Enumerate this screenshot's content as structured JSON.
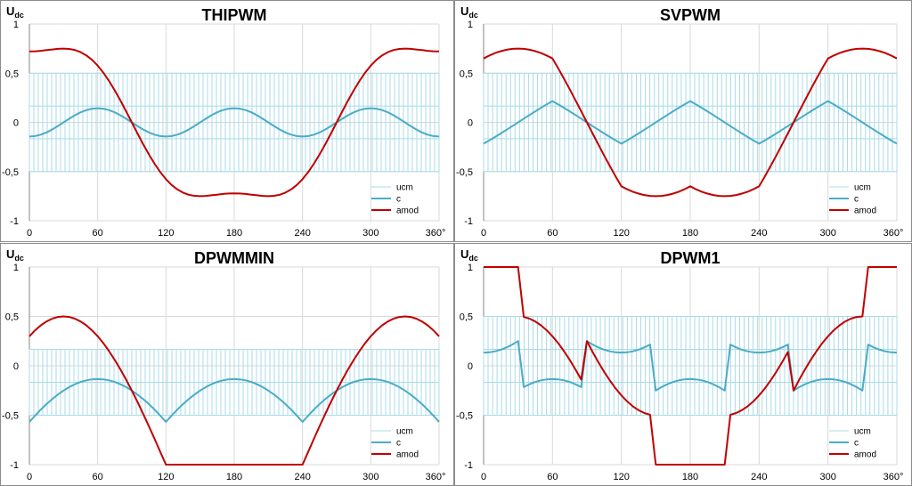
{
  "chart_data": [
    {
      "type": "line",
      "title": "THIPWM",
      "ylabel_main": "U",
      "ylabel_sub": "dc",
      "xlim": [
        0,
        360
      ],
      "ylim": [
        -1,
        1
      ],
      "x_ticks": [
        0,
        60,
        120,
        180,
        240,
        300,
        360
      ],
      "x_tick_labels": [
        "0",
        "60",
        "120",
        "180",
        "240",
        "300",
        "360°"
      ],
      "y_ticks": [
        1,
        0.5,
        0,
        -0.5,
        -1
      ],
      "y_tick_labels": [
        "1",
        "0,5",
        "0",
        "-0,5",
        "-1"
      ],
      "legend_position": "bottom-right",
      "modulation": "thipwm",
      "series": [
        {
          "name": "ucm",
          "color": "#a9dbe8",
          "levels": [
            -0.5,
            -0.1667,
            0.1667,
            0.5
          ]
        },
        {
          "name": "c",
          "color": "#4bacc6",
          "x_step": 5
        },
        {
          "name": "amod",
          "color": "#c00000",
          "x_step": 5
        }
      ]
    },
    {
      "type": "line",
      "title": "SVPWM",
      "ylabel_main": "U",
      "ylabel_sub": "dc",
      "xlim": [
        0,
        360
      ],
      "ylim": [
        -1,
        1
      ],
      "x_ticks": [
        0,
        60,
        120,
        180,
        240,
        300,
        360
      ],
      "x_tick_labels": [
        "0",
        "60",
        "120",
        "180",
        "240",
        "300",
        "360°"
      ],
      "y_ticks": [
        1,
        0.5,
        0,
        -0.5,
        -1
      ],
      "y_tick_labels": [
        "1",
        "0,5",
        "0",
        "-0,5",
        "-1"
      ],
      "legend_position": "bottom-right",
      "modulation": "svpwm",
      "series": [
        {
          "name": "ucm",
          "color": "#a9dbe8",
          "levels": [
            -0.5,
            -0.1667,
            0.1667,
            0.5
          ]
        },
        {
          "name": "c",
          "color": "#4bacc6",
          "x_step": 5
        },
        {
          "name": "amod",
          "color": "#c00000",
          "x_step": 5
        }
      ]
    },
    {
      "type": "line",
      "title": "DPWMMIN",
      "ylabel_main": "U",
      "ylabel_sub": "dc",
      "xlim": [
        0,
        360
      ],
      "ylim": [
        -1,
        1
      ],
      "x_ticks": [
        0,
        60,
        120,
        180,
        240,
        300,
        360
      ],
      "x_tick_labels": [
        "0",
        "60",
        "120",
        "180",
        "240",
        "300",
        "360°"
      ],
      "y_ticks": [
        1,
        0.5,
        0,
        -0.5,
        -1
      ],
      "y_tick_labels": [
        "1",
        "0,5",
        "0",
        "-0,5",
        "-1"
      ],
      "legend_position": "bottom-right",
      "modulation": "dpwmmin",
      "series": [
        {
          "name": "ucm",
          "color": "#a9dbe8",
          "levels": [
            -0.5,
            -0.1667,
            0.1667
          ]
        },
        {
          "name": "c",
          "color": "#4bacc6",
          "x_step": 5
        },
        {
          "name": "amod",
          "color": "#c00000",
          "x_step": 5
        }
      ]
    },
    {
      "type": "line",
      "title": "DPWM1",
      "ylabel_main": "U",
      "ylabel_sub": "dc",
      "xlim": [
        0,
        360
      ],
      "ylim": [
        -1,
        1
      ],
      "x_ticks": [
        0,
        60,
        120,
        180,
        240,
        300,
        360
      ],
      "x_tick_labels": [
        "0",
        "60",
        "120",
        "180",
        "240",
        "300",
        "360°"
      ],
      "y_ticks": [
        1,
        0.5,
        0,
        -0.5,
        -1
      ],
      "y_tick_labels": [
        "1",
        "0,5",
        "0",
        "-0,5",
        "-1"
      ],
      "legend_position": "bottom-right",
      "modulation": "dpwm1",
      "series": [
        {
          "name": "ucm",
          "color": "#a9dbe8",
          "levels": [
            -0.5,
            -0.1667,
            0.1667,
            0.5
          ]
        },
        {
          "name": "c",
          "color": "#4bacc6",
          "x_step": 5
        },
        {
          "name": "amod",
          "color": "#c00000",
          "x_step": 5
        }
      ]
    }
  ]
}
